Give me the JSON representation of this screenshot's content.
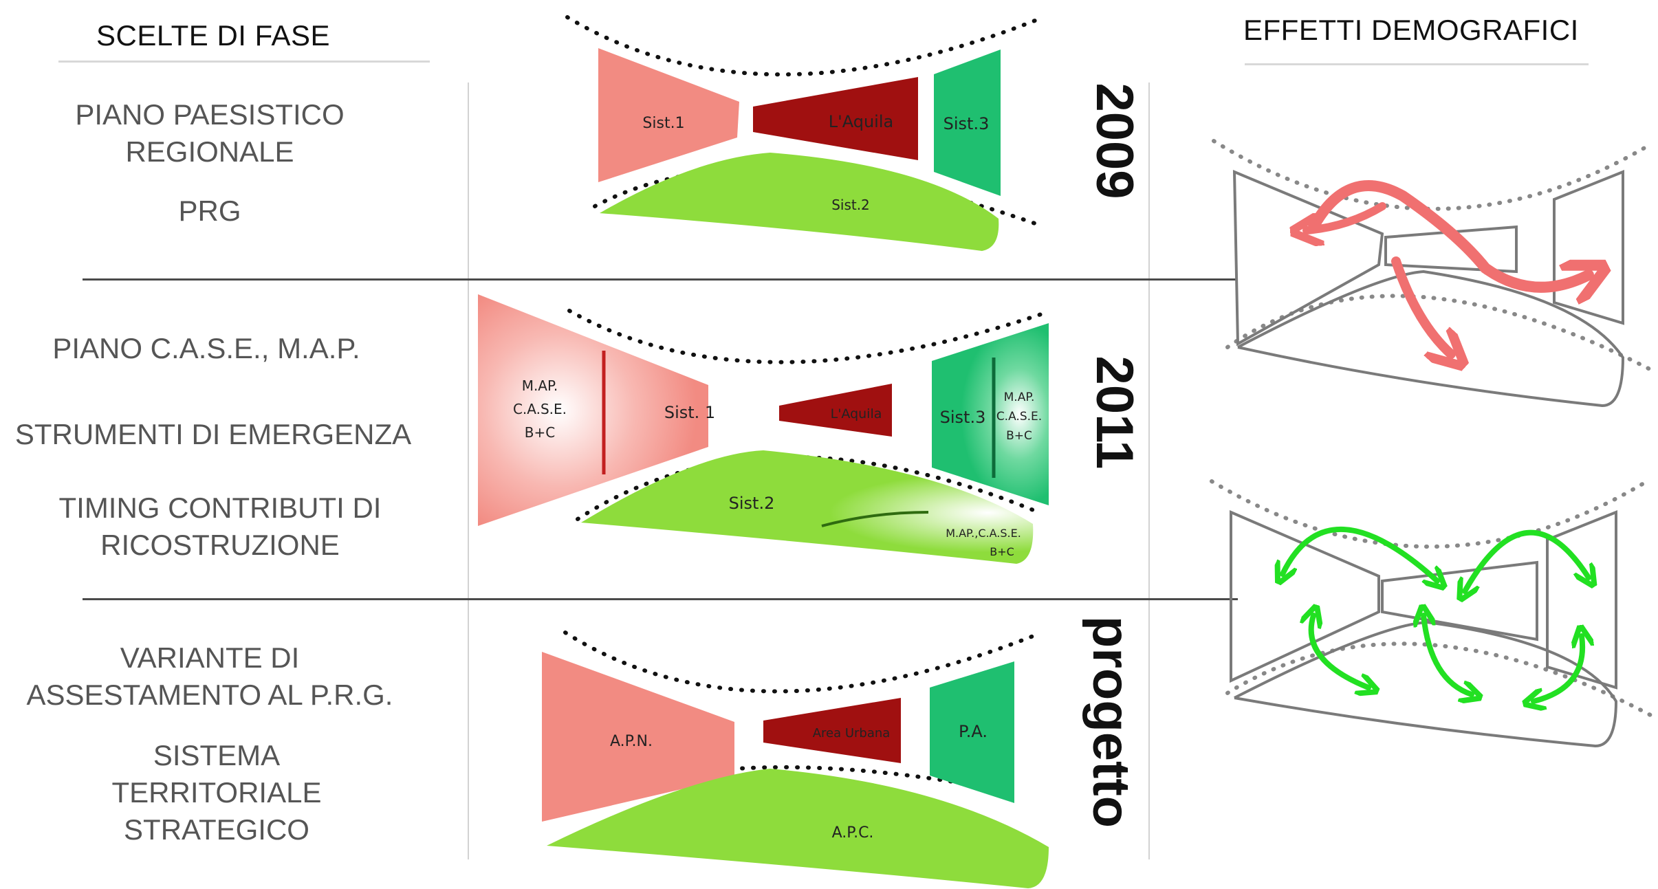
{
  "headers": {
    "left": "SCELTE DI FASE",
    "right": "EFFETTI DEMOGRAFICI"
  },
  "phases": [
    {
      "year": "2009",
      "labels": [
        "PIANO PAESISTICO",
        "REGIONALE",
        "PRG"
      ],
      "diagram": {
        "left": "Sist.1",
        "center": "L'Aquila",
        "right": "Sist.3",
        "bottom": "Sist.2"
      }
    },
    {
      "year": "2011",
      "labels": [
        "PIANO C.A.S.E., M.A.P.",
        "STRUMENTI DI EMERGENZA",
        "TIMING CONTRIBUTI DI",
        "RICOSTRUZIONE"
      ],
      "diagram": {
        "left": "Sist. 1",
        "left_extra": [
          "M.AP.",
          "C.A.S.E.",
          "B+C"
        ],
        "center": "L'Aquila",
        "right": "Sist.3",
        "right_extra": [
          "M.AP.",
          "C.A.S.E.",
          "B+C"
        ],
        "bottom": "Sist.2",
        "bottom_extra": [
          "M.AP.,C.A.S.E.",
          "B+C"
        ]
      }
    },
    {
      "year": "progetto",
      "labels": [
        "VARIANTE DI",
        "ASSESTAMENTO AL P.R.G.",
        "SISTEMA",
        "TERRITORIALE",
        "STRATEGICO"
      ],
      "diagram": {
        "left": "A.P.N.",
        "center": "Area Urbana",
        "right": "P.A.",
        "bottom": "A.P.C."
      }
    }
  ],
  "colors": {
    "salmon": "#f28b82",
    "dark_red": "#a01010",
    "teal": "#1fbf70",
    "light_green": "#8edc3c",
    "arrow_red": "#f07070",
    "arrow_green": "#22e022",
    "outline_gray": "#7a7a7a"
  }
}
